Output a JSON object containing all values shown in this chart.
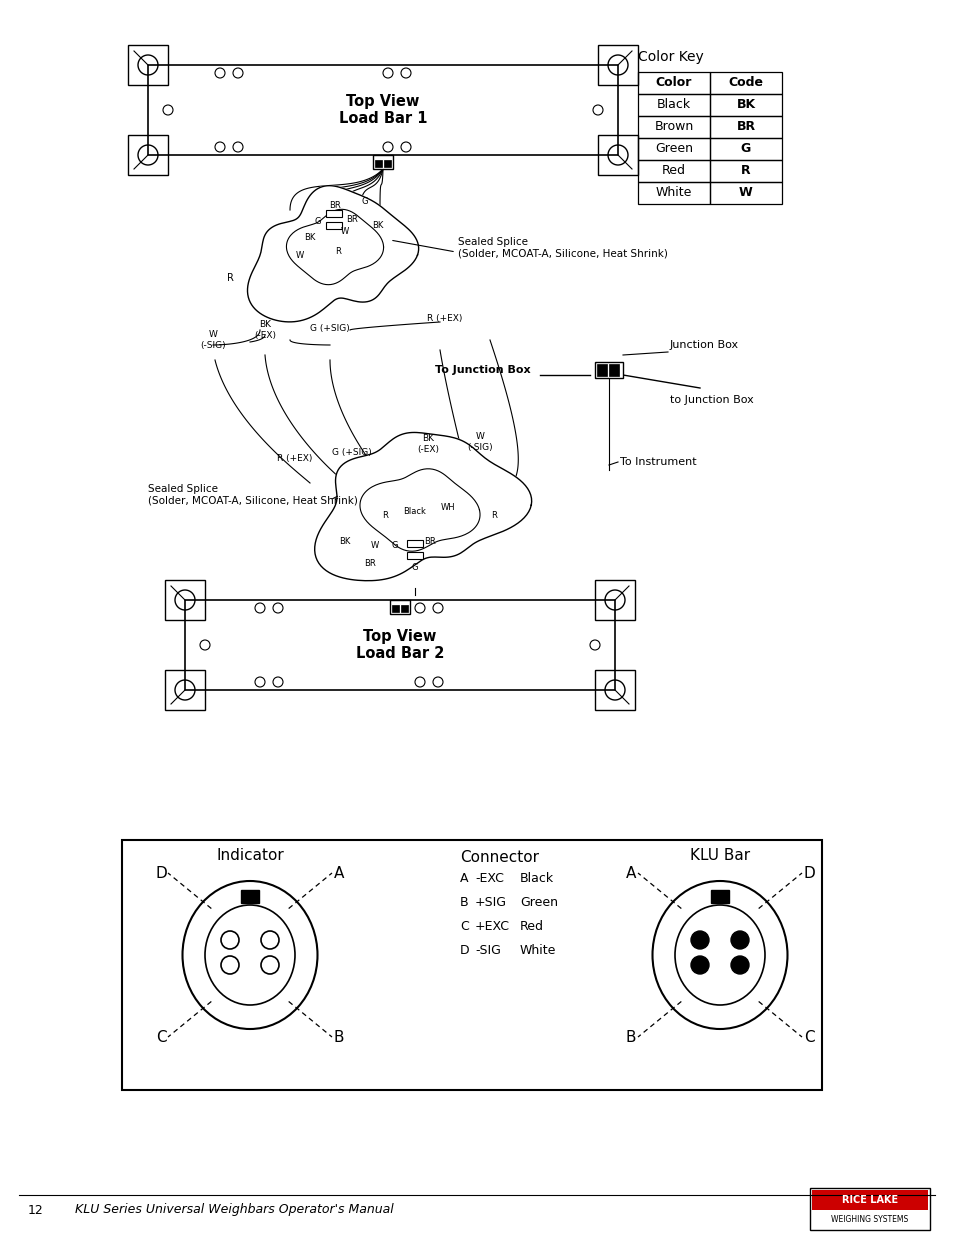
{
  "bg_color": "#ffffff",
  "color_key_title": "Color Key",
  "color_key_rows": [
    [
      "Color",
      "Code"
    ],
    [
      "Black",
      "BK"
    ],
    [
      "Brown",
      "BR"
    ],
    [
      "Green",
      "G"
    ],
    [
      "Red",
      "R"
    ],
    [
      "White",
      "W"
    ]
  ],
  "load_bar1_label": "Top View\nLoad Bar 1",
  "load_bar2_label": "Top View\nLoad Bar 2",
  "sealed_splice_upper": "Sealed Splice\n(Solder, MCOAT-A, Silicone, Heat Shrink)",
  "sealed_splice_lower": "Sealed Splice\n(Solder, MCOAT-A, Silicone, Heat Shrink)",
  "to_junction_box": "To Junction Box",
  "to_junction_box2": "to Junction Box",
  "junction_box_label": "Junction Box",
  "to_instrument": "To Instrument",
  "wire_labels_upper": [
    [
      335,
      205,
      "BR"
    ],
    [
      365,
      202,
      "G"
    ],
    [
      318,
      222,
      "G"
    ],
    [
      352,
      220,
      "BR"
    ],
    [
      310,
      238,
      "BK"
    ],
    [
      345,
      232,
      "W"
    ],
    [
      378,
      225,
      "BK"
    ],
    [
      300,
      255,
      "W"
    ],
    [
      338,
      252,
      "R"
    ]
  ],
  "wire_label_R_left": [
    230,
    278,
    "R"
  ],
  "labels_below_upper": [
    [
      213,
      340,
      "W\n(-SIG)"
    ],
    [
      265,
      330,
      "BK\n(-EX)"
    ],
    [
      330,
      328,
      "G (+SIG)"
    ],
    [
      445,
      318,
      "R (+EX)"
    ]
  ],
  "wire_labels_lower_outer": [
    [
      295,
      458,
      "R (+EX)"
    ],
    [
      352,
      452,
      "G (+SIG)"
    ],
    [
      428,
      444,
      "BK\n(-EX)"
    ],
    [
      480,
      442,
      "W\n(-SIG)"
    ]
  ],
  "wire_labels_lower_inner": [
    [
      385,
      515,
      "R"
    ],
    [
      415,
      512,
      "Black"
    ],
    [
      448,
      508,
      "WH"
    ],
    [
      494,
      515,
      "R"
    ],
    [
      345,
      542,
      "BK"
    ],
    [
      375,
      545,
      "W"
    ],
    [
      395,
      545,
      "G"
    ],
    [
      430,
      542,
      "BR"
    ],
    [
      370,
      564,
      "BR"
    ],
    [
      415,
      567,
      "G"
    ]
  ],
  "connector_title": "Connector",
  "connector_items": [
    [
      "A",
      "-EXC",
      "Black"
    ],
    [
      "B",
      "+SIG",
      "Green"
    ],
    [
      "C",
      "+EXC",
      "Red"
    ],
    [
      "D",
      "-SIG",
      "White"
    ]
  ],
  "indicator_label": "Indicator",
  "klu_bar_label": "KLU Bar",
  "footer_page": "12",
  "footer_text": "KLU Series Universal Weighbars Operator's Manual"
}
